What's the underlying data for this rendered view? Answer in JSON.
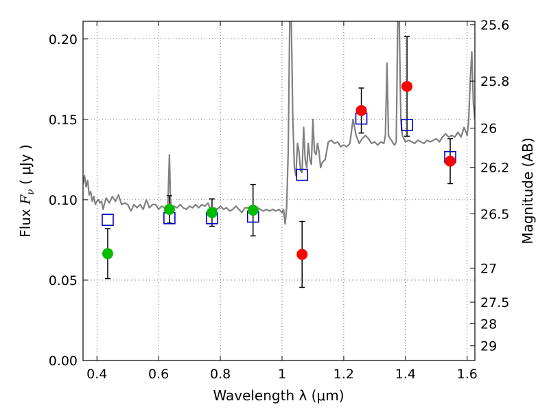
{
  "chart_data": {
    "type": "scatter",
    "xlabel": "Wavelength  λ (μm)",
    "ylabel_prefix": "Flux  ",
    "ylabel_symbol": "F",
    "ylabel_subscript": "ν",
    "ylabel_suffix": "  ( μJy )",
    "y2label": "Magnitude (AB)",
    "xlim": [
      0.355,
      1.625
    ],
    "ylim": [
      0.0,
      0.211
    ],
    "grid": true,
    "x_ticks": [
      0.4,
      0.6,
      0.8,
      1.0,
      1.2,
      1.4,
      1.6
    ],
    "x_tick_labels": [
      "0.4",
      "0.6",
      "0.8",
      "1",
      "1.2",
      "1.4",
      "1.6"
    ],
    "y_ticks": [
      0.0,
      0.05,
      0.1,
      0.15,
      0.2
    ],
    "y_tick_labels": [
      "0.00",
      "0.05",
      "0.10",
      "0.15",
      "0.20"
    ],
    "y2_ticks": [
      {
        "label": "25.6",
        "flux": 0.2089
      },
      {
        "label": "25.8",
        "flux": 0.1738
      },
      {
        "label": "26",
        "flux": 0.1445
      },
      {
        "label": "26.2",
        "flux": 0.1202
      },
      {
        "label": "26.5",
        "flux": 0.0912
      },
      {
        "label": "27",
        "flux": 0.0575
      },
      {
        "label": "27.5",
        "flux": 0.0363
      },
      {
        "label": "28",
        "flux": 0.0229
      },
      {
        "label": "29",
        "flux": 0.0091
      }
    ],
    "series": [
      {
        "marker": "circle",
        "color": "#00bb00",
        "x": [
          0.435,
          0.635,
          0.773,
          0.906
        ],
        "y": [
          0.0665,
          0.094,
          0.092,
          0.0935
        ],
        "yerr": [
          0.0155,
          0.0085,
          0.0085,
          0.016
        ]
      },
      {
        "marker": "circle",
        "color": "#ff0000",
        "x": [
          1.065,
          1.257,
          1.405,
          1.545
        ],
        "y": [
          0.066,
          0.1555,
          0.1705,
          0.124
        ],
        "yerr": [
          0.0205,
          0.014,
          0.031,
          0.014
        ]
      },
      {
        "marker": "square",
        "color": "#0000cc",
        "x": [
          0.435,
          0.635,
          0.773,
          0.906,
          1.065,
          1.257,
          1.405,
          1.545
        ],
        "y": [
          0.0875,
          0.0885,
          0.0885,
          0.0895,
          0.1155,
          0.1505,
          0.1465,
          0.1265
        ]
      },
      {
        "marker": "line",
        "color": "#808080",
        "x": [
          0.355,
          0.36,
          0.365,
          0.37,
          0.375,
          0.38,
          0.385,
          0.39,
          0.395,
          0.4,
          0.405,
          0.41,
          0.415,
          0.42,
          0.425,
          0.43,
          0.44,
          0.45,
          0.46,
          0.47,
          0.48,
          0.49,
          0.5,
          0.51,
          0.52,
          0.53,
          0.54,
          0.55,
          0.56,
          0.57,
          0.58,
          0.59,
          0.6,
          0.61,
          0.62,
          0.63,
          0.635,
          0.638,
          0.64,
          0.645,
          0.65,
          0.66,
          0.67,
          0.68,
          0.69,
          0.7,
          0.71,
          0.72,
          0.73,
          0.74,
          0.75,
          0.76,
          0.77,
          0.78,
          0.79,
          0.8,
          0.81,
          0.82,
          0.83,
          0.84,
          0.85,
          0.86,
          0.87,
          0.88,
          0.89,
          0.9,
          0.91,
          0.92,
          0.93,
          0.94,
          0.95,
          0.96,
          0.97,
          0.98,
          0.99,
          1.0,
          1.005,
          1.01,
          1.015,
          1.02,
          1.025,
          1.03,
          1.035,
          1.04,
          1.045,
          1.05,
          1.055,
          1.06,
          1.065,
          1.07,
          1.075,
          1.08,
          1.085,
          1.09,
          1.095,
          1.1,
          1.105,
          1.11,
          1.115,
          1.12,
          1.125,
          1.13,
          1.14,
          1.15,
          1.16,
          1.17,
          1.18,
          1.19,
          1.2,
          1.21,
          1.22,
          1.23,
          1.24,
          1.25,
          1.26,
          1.27,
          1.28,
          1.29,
          1.3,
          1.31,
          1.32,
          1.33,
          1.335,
          1.34,
          1.345,
          1.35,
          1.355,
          1.36,
          1.365,
          1.37,
          1.375,
          1.38,
          1.385,
          1.39,
          1.4,
          1.41,
          1.42,
          1.43,
          1.44,
          1.45,
          1.46,
          1.47,
          1.48,
          1.49,
          1.5,
          1.51,
          1.52,
          1.53,
          1.54,
          1.55,
          1.56,
          1.57,
          1.58,
          1.59,
          1.6,
          1.605,
          1.61,
          1.615,
          1.62,
          1.625
        ],
        "y": [
          0.11,
          0.115,
          0.108,
          0.112,
          0.103,
          0.105,
          0.099,
          0.102,
          0.097,
          0.099,
          0.1,
          0.098,
          0.099,
          0.094,
          0.098,
          0.101,
          0.098,
          0.102,
          0.099,
          0.103,
          0.097,
          0.098,
          0.097,
          0.093,
          0.097,
          0.095,
          0.097,
          0.094,
          0.1,
          0.095,
          0.097,
          0.097,
          0.094,
          0.096,
          0.095,
          0.097,
          0.128,
          0.104,
          0.097,
          0.095,
          0.096,
          0.095,
          0.097,
          0.095,
          0.094,
          0.096,
          0.095,
          0.097,
          0.095,
          0.097,
          0.096,
          0.098,
          0.093,
          0.095,
          0.094,
          0.096,
          0.094,
          0.095,
          0.093,
          0.094,
          0.096,
          0.094,
          0.092,
          0.095,
          0.095,
          0.094,
          0.095,
          0.095,
          0.094,
          0.093,
          0.094,
          0.093,
          0.094,
          0.093,
          0.094,
          0.092,
          0.094,
          0.085,
          0.095,
          0.13,
          0.211,
          0.211,
          0.15,
          0.12,
          0.115,
          0.135,
          0.13,
          0.118,
          0.117,
          0.145,
          0.125,
          0.12,
          0.135,
          0.125,
          0.122,
          0.15,
          0.13,
          0.128,
          0.135,
          0.13,
          0.12,
          0.123,
          0.125,
          0.136,
          0.137,
          0.135,
          0.136,
          0.133,
          0.134,
          0.133,
          0.135,
          0.15,
          0.14,
          0.135,
          0.138,
          0.14,
          0.138,
          0.135,
          0.136,
          0.134,
          0.136,
          0.135,
          0.14,
          0.185,
          0.14,
          0.138,
          0.137,
          0.135,
          0.134,
          0.136,
          0.211,
          0.211,
          0.15,
          0.14,
          0.136,
          0.137,
          0.136,
          0.135,
          0.137,
          0.136,
          0.135,
          0.137,
          0.136,
          0.137,
          0.138,
          0.136,
          0.139,
          0.141,
          0.139,
          0.14,
          0.139,
          0.142,
          0.139,
          0.145,
          0.14,
          0.15,
          0.175,
          0.192,
          0.16,
          0.15
        ]
      }
    ]
  }
}
